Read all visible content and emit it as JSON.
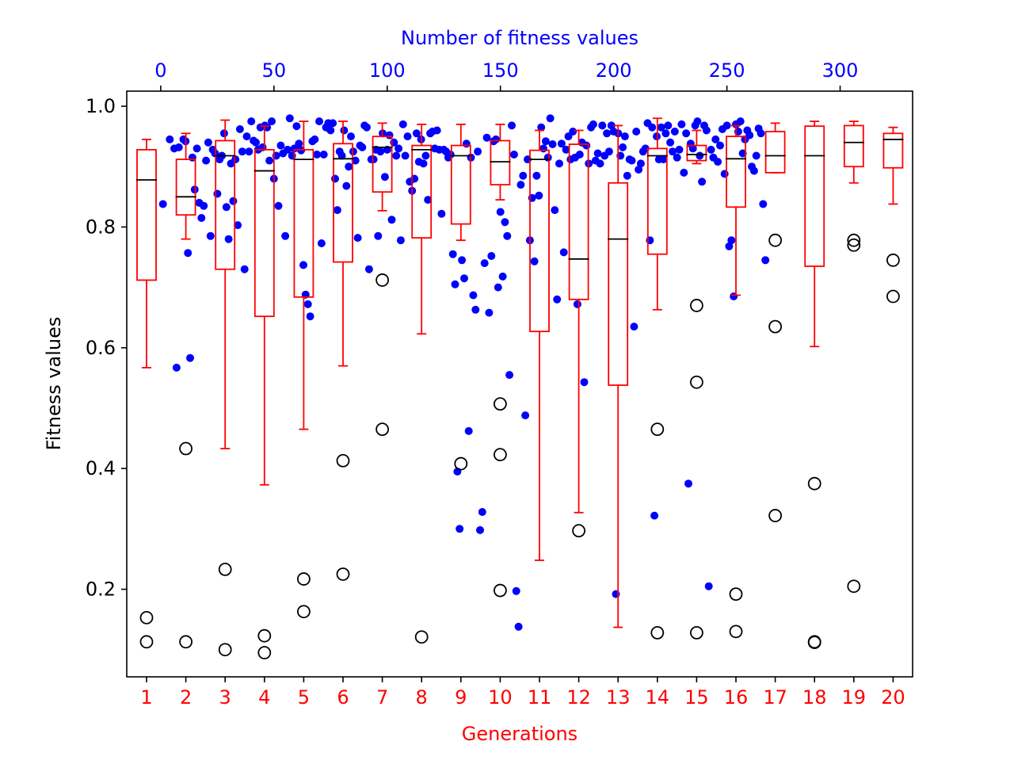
{
  "chart_data": {
    "type": "box-scatter",
    "xlabel": "Generations",
    "ylabel": "Fitness values",
    "top_xlabel": "Number of fitness values",
    "categories": [
      "1",
      "2",
      "3",
      "4",
      "5",
      "6",
      "7",
      "8",
      "9",
      "10",
      "11",
      "12",
      "13",
      "14",
      "15",
      "16",
      "17",
      "18",
      "19",
      "20"
    ],
    "yticks": [
      "0.2",
      "0.4",
      "0.6",
      "0.8",
      "1.0"
    ],
    "ytick_values": [
      0.2,
      0.4,
      0.6,
      0.8,
      1.0
    ],
    "top_ticks": [
      "0",
      "50",
      "100",
      "150",
      "200",
      "250",
      "300"
    ],
    "top_tick_values": [
      0,
      50,
      100,
      150,
      200,
      250,
      300
    ],
    "ylim": [
      0.055,
      1.025
    ],
    "top_xlim": [
      -15,
      332
    ],
    "colors": {
      "box": "#ff0000",
      "median": "#000000",
      "points": "#0000ff",
      "outliers": "#000000",
      "bottom_axis": "#ff0000",
      "top_axis": "#0000ff"
    },
    "boxes": [
      {
        "q1": 0.712,
        "median": 0.878,
        "q3": 0.928,
        "whislo": 0.567,
        "whishi": 0.945,
        "fliers": [
          0.153,
          0.113
        ]
      },
      {
        "q1": 0.82,
        "median": 0.85,
        "q3": 0.912,
        "whislo": 0.78,
        "whishi": 0.955,
        "fliers": [
          0.433,
          0.113
        ]
      },
      {
        "q1": 0.73,
        "median": 0.918,
        "q3": 0.943,
        "whislo": 0.433,
        "whishi": 0.977,
        "fliers": [
          0.233,
          0.1
        ]
      },
      {
        "q1": 0.652,
        "median": 0.893,
        "q3": 0.928,
        "whislo": 0.373,
        "whishi": 0.967,
        "fliers": [
          0.123,
          0.095
        ]
      },
      {
        "q1": 0.684,
        "median": 0.912,
        "q3": 0.928,
        "whislo": 0.465,
        "whishi": 0.975,
        "fliers": [
          0.217,
          0.163
        ]
      },
      {
        "q1": 0.742,
        "median": 0.913,
        "q3": 0.938,
        "whislo": 0.57,
        "whishi": 0.975,
        "fliers": [
          0.413,
          0.225
        ]
      },
      {
        "q1": 0.858,
        "median": 0.932,
        "q3": 0.95,
        "whislo": 0.827,
        "whishi": 0.972,
        "fliers": [
          0.712,
          0.465
        ]
      },
      {
        "q1": 0.782,
        "median": 0.928,
        "q3": 0.935,
        "whislo": 0.623,
        "whishi": 0.97,
        "fliers": [
          0.121
        ]
      },
      {
        "q1": 0.805,
        "median": 0.918,
        "q3": 0.935,
        "whislo": 0.778,
        "whishi": 0.97,
        "fliers": [
          0.408
        ]
      },
      {
        "q1": 0.87,
        "median": 0.908,
        "q3": 0.943,
        "whislo": 0.845,
        "whishi": 0.97,
        "fliers": [
          0.507,
          0.423,
          0.198
        ]
      },
      {
        "q1": 0.627,
        "median": 0.912,
        "q3": 0.927,
        "whislo": 0.248,
        "whishi": 0.96,
        "fliers": []
      },
      {
        "q1": 0.68,
        "median": 0.747,
        "q3": 0.937,
        "whislo": 0.327,
        "whishi": 0.96,
        "fliers": [
          0.297
        ]
      },
      {
        "q1": 0.538,
        "median": 0.78,
        "q3": 0.873,
        "whislo": 0.137,
        "whishi": 0.968,
        "fliers": []
      },
      {
        "q1": 0.755,
        "median": 0.918,
        "q3": 0.93,
        "whislo": 0.663,
        "whishi": 0.98,
        "fliers": [
          0.465,
          0.128
        ]
      },
      {
        "q1": 0.91,
        "median": 0.92,
        "q3": 0.935,
        "whislo": 0.905,
        "whishi": 0.96,
        "fliers": [
          0.67,
          0.543,
          0.128
        ]
      },
      {
        "q1": 0.833,
        "median": 0.913,
        "q3": 0.95,
        "whislo": 0.687,
        "whishi": 0.968,
        "fliers": [
          0.192,
          0.13
        ]
      },
      {
        "q1": 0.89,
        "median": 0.918,
        "q3": 0.958,
        "whislo": 0.89,
        "whishi": 0.972,
        "fliers": [
          0.778,
          0.635,
          0.322
        ]
      },
      {
        "q1": 0.735,
        "median": 0.918,
        "q3": 0.967,
        "whislo": 0.602,
        "whishi": 0.975,
        "fliers": [
          0.375,
          0.113,
          0.112
        ]
      },
      {
        "q1": 0.9,
        "median": 0.94,
        "q3": 0.968,
        "whislo": 0.873,
        "whishi": 0.975,
        "fliers": [
          0.778,
          0.77,
          0.205
        ]
      },
      {
        "q1": 0.898,
        "median": 0.945,
        "q3": 0.955,
        "whislo": 0.838,
        "whishi": 0.965,
        "fliers": [
          0.745,
          0.685
        ]
      }
    ],
    "scatter": [
      [
        1,
        0.838
      ],
      [
        4,
        0.945
      ],
      [
        6,
        0.93
      ],
      [
        7,
        0.567
      ],
      [
        8,
        0.932
      ],
      [
        10,
        0.945
      ],
      [
        11,
        0.942
      ],
      [
        12,
        0.757
      ],
      [
        13,
        0.583
      ],
      [
        14,
        0.915
      ],
      [
        15,
        0.862
      ],
      [
        16,
        0.93
      ],
      [
        17,
        0.84
      ],
      [
        18,
        0.815
      ],
      [
        19,
        0.835
      ],
      [
        20,
        0.91
      ],
      [
        21,
        0.94
      ],
      [
        22,
        0.785
      ],
      [
        23,
        0.928
      ],
      [
        24,
        0.922
      ],
      [
        25,
        0.855
      ],
      [
        26,
        0.912
      ],
      [
        27,
        0.918
      ],
      [
        28,
        0.955
      ],
      [
        29,
        0.833
      ],
      [
        30,
        0.78
      ],
      [
        31,
        0.905
      ],
      [
        32,
        0.843
      ],
      [
        33,
        0.912
      ],
      [
        34,
        0.803
      ],
      [
        35,
        0.962
      ],
      [
        36,
        0.925
      ],
      [
        37,
        0.73
      ],
      [
        38,
        0.95
      ],
      [
        39,
        0.925
      ],
      [
        40,
        0.975
      ],
      [
        41,
        0.943
      ],
      [
        42,
        0.94
      ],
      [
        43,
        0.928
      ],
      [
        44,
        0.965
      ],
      [
        45,
        0.932
      ],
      [
        46,
        0.968
      ],
      [
        47,
        0.965
      ],
      [
        48,
        0.91
      ],
      [
        49,
        0.975
      ],
      [
        50,
        0.88
      ],
      [
        51,
        0.918
      ],
      [
        52,
        0.835
      ],
      [
        53,
        0.935
      ],
      [
        54,
        0.922
      ],
      [
        55,
        0.785
      ],
      [
        56,
        0.928
      ],
      [
        57,
        0.98
      ],
      [
        58,
        0.918
      ],
      [
        59,
        0.93
      ],
      [
        60,
        0.967
      ],
      [
        61,
        0.938
      ],
      [
        62,
        0.927
      ],
      [
        63,
        0.737
      ],
      [
        64,
        0.688
      ],
      [
        65,
        0.672
      ],
      [
        66,
        0.652
      ],
      [
        67,
        0.942
      ],
      [
        68,
        0.945
      ],
      [
        69,
        0.92
      ],
      [
        70,
        0.975
      ],
      [
        71,
        0.773
      ],
      [
        72,
        0.92
      ],
      [
        73,
        0.965
      ],
      [
        74,
        0.972
      ],
      [
        75,
        0.96
      ],
      [
        76,
        0.972
      ],
      [
        77,
        0.88
      ],
      [
        78,
        0.828
      ],
      [
        79,
        0.925
      ],
      [
        80,
        0.918
      ],
      [
        81,
        0.96
      ],
      [
        82,
        0.868
      ],
      [
        83,
        0.9
      ],
      [
        84,
        0.95
      ],
      [
        85,
        0.925
      ],
      [
        86,
        0.91
      ],
      [
        87,
        0.782
      ],
      [
        88,
        0.935
      ],
      [
        89,
        0.932
      ],
      [
        90,
        0.968
      ],
      [
        91,
        0.965
      ],
      [
        92,
        0.73
      ],
      [
        93,
        0.912
      ],
      [
        94,
        0.912
      ],
      [
        95,
        0.928
      ],
      [
        96,
        0.785
      ],
      [
        97,
        0.925
      ],
      [
        98,
        0.955
      ],
      [
        99,
        0.883
      ],
      [
        100,
        0.928
      ],
      [
        101,
        0.952
      ],
      [
        102,
        0.812
      ],
      [
        103,
        0.94
      ],
      [
        104,
        0.918
      ],
      [
        105,
        0.93
      ],
      [
        106,
        0.778
      ],
      [
        107,
        0.97
      ],
      [
        108,
        0.918
      ],
      [
        109,
        0.95
      ],
      [
        110,
        0.875
      ],
      [
        111,
        0.86
      ],
      [
        112,
        0.88
      ],
      [
        113,
        0.955
      ],
      [
        114,
        0.908
      ],
      [
        115,
        0.945
      ],
      [
        116,
        0.905
      ],
      [
        117,
        0.918
      ],
      [
        118,
        0.845
      ],
      [
        119,
        0.955
      ],
      [
        120,
        0.958
      ],
      [
        121,
        0.93
      ],
      [
        122,
        0.96
      ],
      [
        123,
        0.928
      ],
      [
        124,
        0.822
      ],
      [
        125,
        0.928
      ],
      [
        126,
        0.925
      ],
      [
        127,
        0.915
      ],
      [
        128,
        0.92
      ],
      [
        129,
        0.755
      ],
      [
        130,
        0.705
      ],
      [
        131,
        0.395
      ],
      [
        132,
        0.3
      ],
      [
        133,
        0.745
      ],
      [
        134,
        0.715
      ],
      [
        135,
        0.938
      ],
      [
        136,
        0.462
      ],
      [
        137,
        0.915
      ],
      [
        138,
        0.687
      ],
      [
        139,
        0.663
      ],
      [
        140,
        0.925
      ],
      [
        141,
        0.298
      ],
      [
        142,
        0.328
      ],
      [
        143,
        0.74
      ],
      [
        144,
        0.948
      ],
      [
        145,
        0.658
      ],
      [
        146,
        0.752
      ],
      [
        147,
        0.942
      ],
      [
        148,
        0.945
      ],
      [
        149,
        0.7
      ],
      [
        150,
        0.825
      ],
      [
        151,
        0.718
      ],
      [
        152,
        0.808
      ],
      [
        153,
        0.785
      ],
      [
        154,
        0.555
      ],
      [
        155,
        0.968
      ],
      [
        156,
        0.92
      ],
      [
        157,
        0.197
      ],
      [
        158,
        0.138
      ],
      [
        159,
        0.87
      ],
      [
        160,
        0.885
      ],
      [
        161,
        0.488
      ],
      [
        162,
        0.912
      ],
      [
        163,
        0.778
      ],
      [
        164,
        0.848
      ],
      [
        165,
        0.743
      ],
      [
        166,
        0.885
      ],
      [
        167,
        0.852
      ],
      [
        168,
        0.965
      ],
      [
        169,
        0.93
      ],
      [
        170,
        0.942
      ],
      [
        171,
        0.915
      ],
      [
        172,
        0.98
      ],
      [
        173,
        0.937
      ],
      [
        174,
        0.828
      ],
      [
        175,
        0.68
      ],
      [
        176,
        0.905
      ],
      [
        177,
        0.938
      ],
      [
        178,
        0.758
      ],
      [
        179,
        0.928
      ],
      [
        180,
        0.95
      ],
      [
        181,
        0.912
      ],
      [
        182,
        0.958
      ],
      [
        183,
        0.915
      ],
      [
        184,
        0.672
      ],
      [
        185,
        0.92
      ],
      [
        186,
        0.94
      ],
      [
        187,
        0.543
      ],
      [
        188,
        0.935
      ],
      [
        189,
        0.905
      ],
      [
        190,
        0.965
      ],
      [
        191,
        0.97
      ],
      [
        192,
        0.91
      ],
      [
        193,
        0.922
      ],
      [
        194,
        0.905
      ],
      [
        195,
        0.968
      ],
      [
        196,
        0.918
      ],
      [
        197,
        0.955
      ],
      [
        198,
        0.925
      ],
      [
        199,
        0.968
      ],
      [
        200,
        0.958
      ],
      [
        201,
        0.192
      ],
      [
        202,
        0.955
      ],
      [
        203,
        0.918
      ],
      [
        204,
        0.932
      ],
      [
        205,
        0.95
      ],
      [
        206,
        0.885
      ],
      [
        207,
        0.912
      ],
      [
        208,
        0.91
      ],
      [
        209,
        0.635
      ],
      [
        210,
        0.958
      ],
      [
        211,
        0.895
      ],
      [
        212,
        0.905
      ],
      [
        213,
        0.925
      ],
      [
        214,
        0.93
      ],
      [
        215,
        0.972
      ],
      [
        216,
        0.778
      ],
      [
        217,
        0.965
      ],
      [
        218,
        0.322
      ],
      [
        219,
        0.95
      ],
      [
        220,
        0.912
      ],
      [
        221,
        0.965
      ],
      [
        222,
        0.912
      ],
      [
        223,
        0.955
      ],
      [
        224,
        0.968
      ],
      [
        225,
        0.94
      ],
      [
        226,
        0.925
      ],
      [
        227,
        0.958
      ],
      [
        228,
        0.915
      ],
      [
        229,
        0.928
      ],
      [
        230,
        0.97
      ],
      [
        231,
        0.89
      ],
      [
        232,
        0.955
      ],
      [
        233,
        0.375
      ],
      [
        234,
        0.938
      ],
      [
        235,
        0.93
      ],
      [
        236,
        0.968
      ],
      [
        237,
        0.975
      ],
      [
        238,
        0.918
      ],
      [
        239,
        0.875
      ],
      [
        240,
        0.968
      ],
      [
        241,
        0.96
      ],
      [
        242,
        0.205
      ],
      [
        243,
        0.928
      ],
      [
        244,
        0.915
      ],
      [
        245,
        0.945
      ],
      [
        246,
        0.908
      ],
      [
        247,
        0.935
      ],
      [
        248,
        0.962
      ],
      [
        249,
        0.888
      ],
      [
        250,
        0.968
      ],
      [
        251,
        0.768
      ],
      [
        252,
        0.778
      ],
      [
        253,
        0.685
      ],
      [
        254,
        0.97
      ],
      [
        255,
        0.958
      ],
      [
        256,
        0.975
      ],
      [
        257,
        0.922
      ],
      [
        258,
        0.945
      ],
      [
        259,
        0.96
      ],
      [
        260,
        0.952
      ],
      [
        261,
        0.9
      ],
      [
        262,
        0.893
      ],
      [
        263,
        0.918
      ],
      [
        264,
        0.963
      ],
      [
        265,
        0.955
      ],
      [
        266,
        0.838
      ],
      [
        267,
        0.745
      ]
    ]
  }
}
